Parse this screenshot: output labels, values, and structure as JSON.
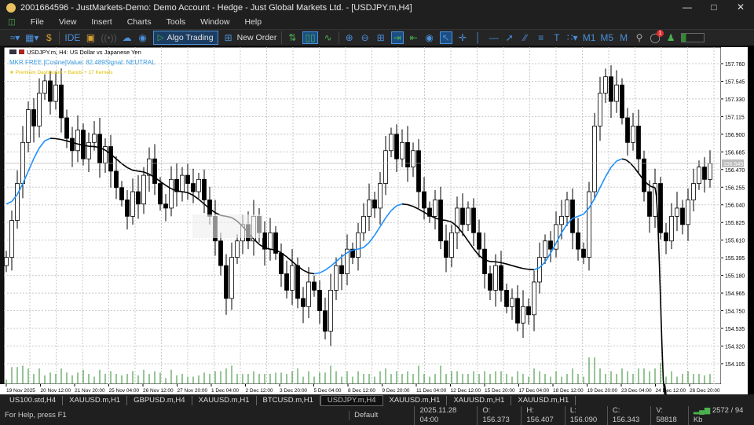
{
  "window": {
    "title": "2001664596 - JustMarkets-Demo: Demo Account - Hedge - Just Global Markets Ltd. - [USDJPY.m,H4]"
  },
  "menu": [
    "File",
    "View",
    "Insert",
    "Charts",
    "Tools",
    "Window",
    "Help"
  ],
  "toolbar": {
    "ide": "IDE",
    "algo_trading": "Algo Trading",
    "new_order": "New Order",
    "timeframes": [
      "M1",
      "M5",
      "M"
    ],
    "notification_count": "1"
  },
  "chart": {
    "symbol_line": "USDJPY.m, H4:  US Dollar vs Japanese Yen",
    "indicator_line": "MKR FREE [Cosine]Value: 82.489Signal: NEUTRAL",
    "promo_line": "★ Premium Dashboard + Bands + 17 Kernels",
    "current_price_label": "156.545",
    "colors": {
      "bull": "#ffffff",
      "bear": "#000000",
      "ma_up": "#1e90ff",
      "ma_down": "#000000",
      "volume": "#2e8b2e",
      "grid": "#c8c8c8"
    }
  },
  "chart_data": {
    "type": "candlestick",
    "ylim": [
      154.0,
      157.86
    ],
    "y_ticks": [
      "157.760",
      "157.545",
      "157.330",
      "157.115",
      "156.900",
      "156.685",
      "156.470",
      "156.255",
      "156.040",
      "155.825",
      "155.610",
      "155.395",
      "155.180",
      "154.965",
      "154.750",
      "154.535",
      "154.320",
      "154.105"
    ],
    "x_ticks": [
      "19 Nov 2025",
      "20 Nov 12:00",
      "21 Nov 20:00",
      "25 Nov 04:00",
      "26 Nov 12:00",
      "27 Nov 20:00",
      "1 Dec 04:00",
      "2 Dec 12:00",
      "3 Dec 20:00",
      "5 Dec 04:00",
      "8 Dec 12:00",
      "9 Dec 20:00",
      "11 Dec 04:00",
      "12 Dec 12:00",
      "15 Dec 20:00",
      "17 Dec 04:00",
      "18 Dec 12:00",
      "19 Dec 20:00",
      "23 Dec 04:00",
      "24 Dec 12:00",
      "26 Dec 20:00"
    ],
    "closes": [
      155.4,
      155.85,
      156.3,
      156.8,
      157.2,
      157.0,
      157.4,
      157.55,
      157.3,
      157.5,
      157.1,
      156.85,
      156.7,
      156.95,
      156.6,
      156.8,
      156.9,
      156.55,
      156.75,
      156.45,
      156.25,
      156.1,
      155.9,
      156.2,
      156.05,
      156.4,
      156.6,
      156.3,
      156.05,
      156.0,
      156.35,
      156.2,
      156.4,
      156.3,
      156.2,
      156.35,
      156.1,
      155.9,
      155.6,
      155.3,
      154.9,
      155.4,
      155.6,
      155.8,
      155.6,
      155.9,
      155.7,
      155.5,
      155.7,
      155.45,
      155.2,
      155.0,
      155.3,
      154.9,
      154.8,
      155.1,
      155.0,
      154.75,
      154.5,
      155.0,
      155.3,
      155.2,
      155.5,
      155.4,
      155.7,
      155.9,
      156.1,
      156.0,
      156.3,
      156.7,
      156.9,
      156.6,
      156.8,
      156.5,
      156.7,
      156.2,
      156.0,
      155.9,
      156.1,
      155.6,
      155.4,
      155.7,
      156.0,
      155.8,
      156.0,
      155.7,
      155.5,
      155.2,
      155.0,
      155.3,
      155.0,
      154.8,
      154.9,
      154.6,
      154.8,
      154.7,
      155.1,
      155.4,
      155.6,
      155.5,
      155.8,
      155.9,
      156.1,
      155.7,
      155.5,
      155.4,
      156.2,
      157.0,
      157.4,
      157.6,
      157.3,
      157.5,
      157.1,
      156.8,
      157.0,
      156.6,
      156.2,
      155.9,
      156.3,
      155.7,
      155.6,
      155.9,
      156.0,
      155.8,
      156.1,
      156.3,
      156.5,
      156.35,
      156.545
    ],
    "moving_average": [
      [
        0,
        156.05
      ],
      [
        8,
        156.85
      ],
      [
        16,
        156.75
      ],
      [
        24,
        156.45
      ],
      [
        32,
        156.2
      ],
      [
        40,
        155.9
      ],
      [
        48,
        155.5
      ],
      [
        56,
        155.2
      ],
      [
        64,
        155.5
      ],
      [
        72,
        156.05
      ],
      [
        80,
        155.85
      ],
      [
        88,
        155.35
      ],
      [
        96,
        155.25
      ],
      [
        104,
        155.9
      ],
      [
        112,
        156.6
      ],
      [
        118,
        156.25
      ],
      [
        120,
        153.5
      ]
    ]
  },
  "tabs": [
    "US100.std,H4",
    "XAUUSD.m,H1",
    "GBPUSD.m,H4",
    "XAUUSD.m,H1",
    "BTCUSD.m,H1",
    "USDJPY.m,H4",
    "XAUUSD.m,H1",
    "XAUUSD.m,H1",
    "XAUUSD.m,H1"
  ],
  "active_tab": 5,
  "status": {
    "help": "For Help, press F1",
    "profile": "Default",
    "time": "2025.11.28 04:00",
    "open": "O: 156.373",
    "high": "H: 156.407",
    "low": "L: 156.090",
    "close": "C: 156.343",
    "volume": "V: 58818",
    "traffic": "2572 / 94 Kb"
  }
}
